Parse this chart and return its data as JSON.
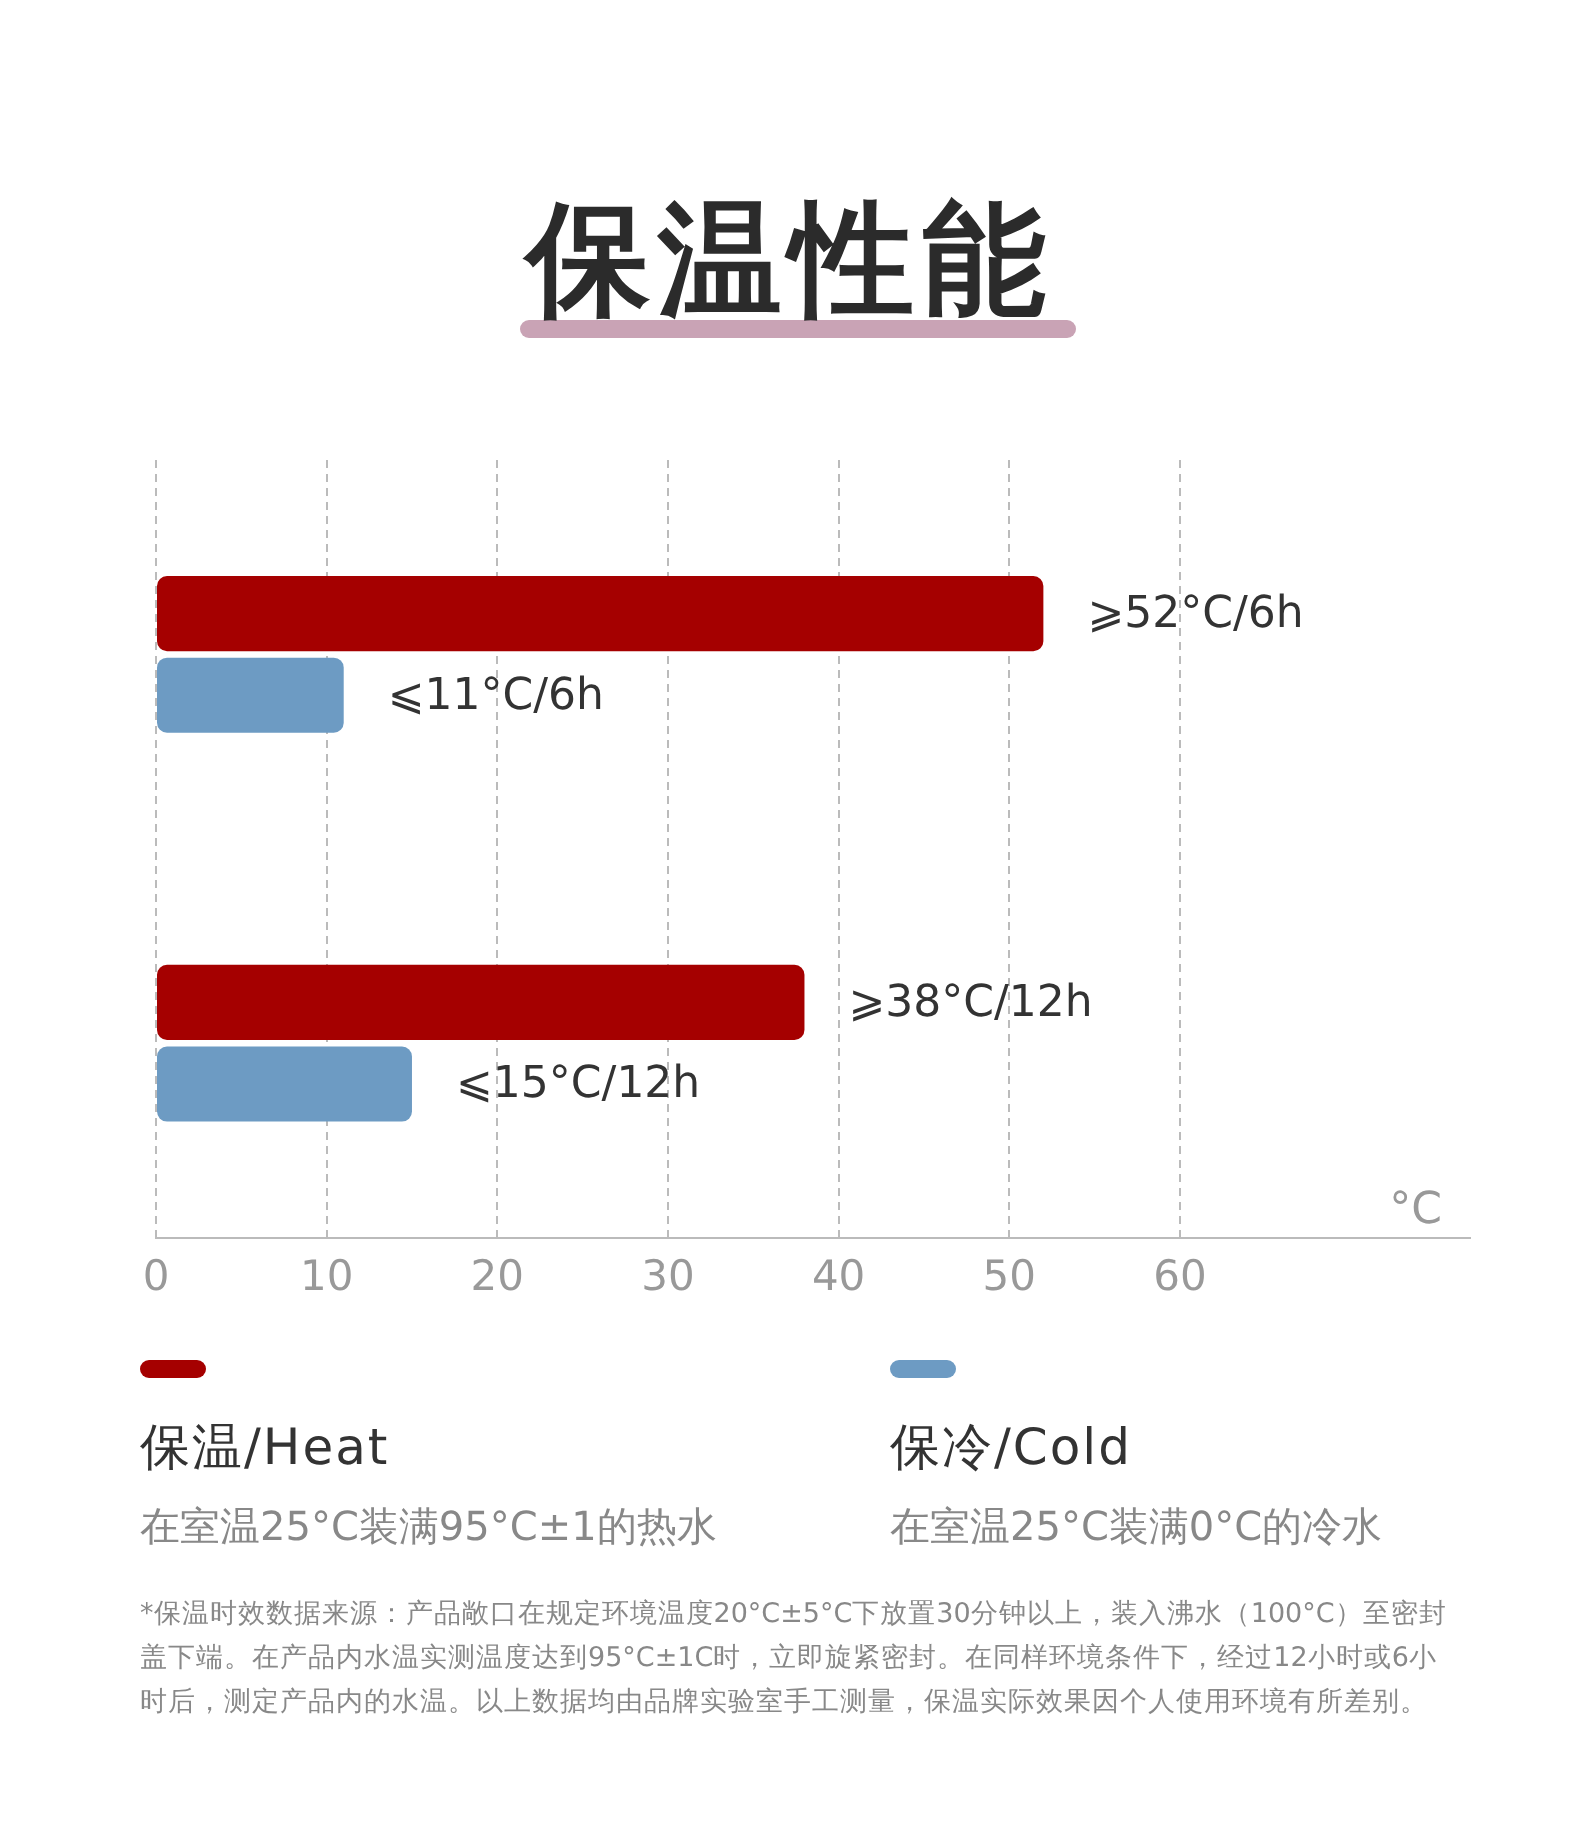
{
  "chart_data": {
    "type": "bar",
    "orientation": "horizontal",
    "title": "保温性能",
    "xlabel": "°C",
    "categories": [
      null,
      null
    ],
    "series": [
      {
        "name": "保温/Heat",
        "color": "#a50000",
        "values": [
          52,
          38
        ],
        "value_labels": [
          "⩾52°C/6h",
          "⩾38°C/12h"
        ]
      },
      {
        "name": "保冷/Cold",
        "color": "#6d9bc3",
        "values": [
          11,
          15
        ],
        "value_labels": [
          "⩽11°C/6h",
          "⩽15°C/12h"
        ]
      }
    ],
    "xlim": [
      0,
      77
    ],
    "xticks": [
      0,
      10,
      20,
      30,
      40,
      50,
      60
    ],
    "grid": "x",
    "legend": "bottom",
    "annotations": [
      "在室温25°C装满95°C±1的热水",
      "在室温25°C装满0°C的冷水",
      "*保温时效数据来源：产品敞口在规定环境温度20°C±5°C下放置30分钟以上，装入沸水（100°C）至密封盖下端。在产品内水温实测温度达到95°C±1C时，立即旋紧密封。在同样环境条件下，经过12小时或6小时后，测定产品内的水温。以上数据均由品牌实验室手工测量，保温实际效果因个人使用环境有所差别。"
    ]
  }
}
